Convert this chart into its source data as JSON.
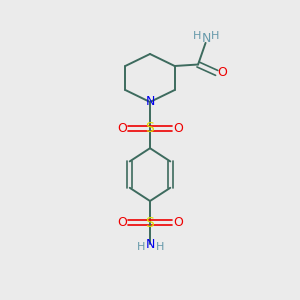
{
  "bg_color": "#ebebeb",
  "bond_color": "#3d6b5e",
  "N_color": "#0000ee",
  "O_color": "#ee0000",
  "S_color": "#dddd00",
  "NH_color": "#6699aa",
  "figsize": [
    3.0,
    3.0
  ],
  "dpi": 100,
  "xlim": [
    0,
    10
  ],
  "ylim": [
    0,
    10
  ]
}
